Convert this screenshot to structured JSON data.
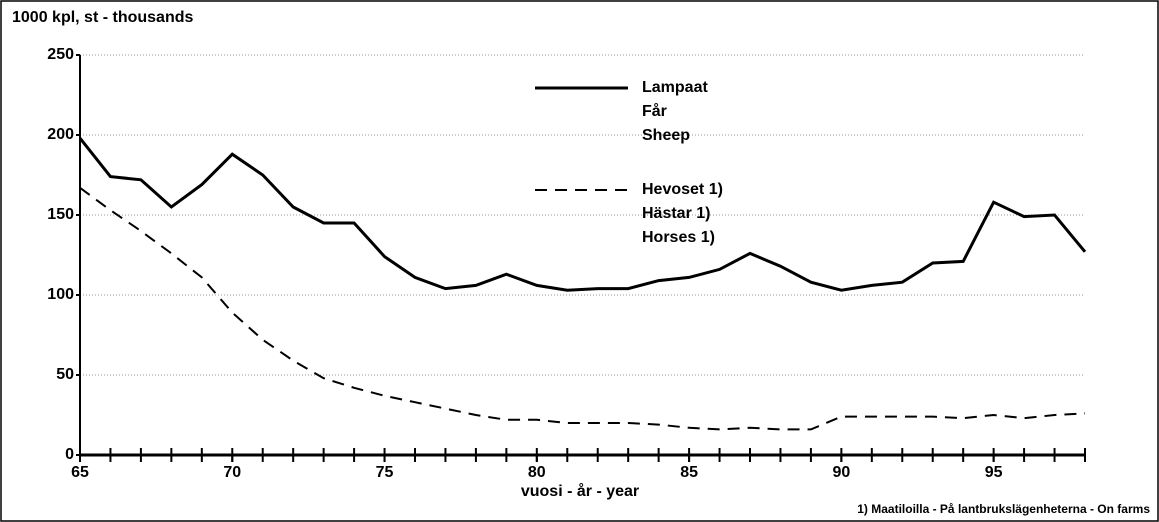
{
  "chart_data": {
    "type": "line",
    "y_label": "1000 kpl, st - thousands",
    "x_label": "vuosi - år - year",
    "note": "1) Maatiloilla - På lantbrukslägenheterna - On farms",
    "x": [
      65,
      66,
      67,
      68,
      69,
      70,
      71,
      72,
      73,
      74,
      75,
      76,
      77,
      78,
      79,
      80,
      81,
      82,
      83,
      84,
      85,
      86,
      87,
      88,
      89,
      90,
      91,
      92,
      93,
      94,
      95,
      96,
      97,
      98
    ],
    "series": [
      {
        "name": [
          "Lampaat",
          "Får",
          "Sheep"
        ],
        "color": "#000000",
        "style": "solid",
        "values": [
          198,
          174,
          172,
          155,
          169,
          188,
          175,
          155,
          145,
          145,
          124,
          111,
          104,
          106,
          113,
          106,
          103,
          104,
          104,
          109,
          111,
          116,
          126,
          118,
          108,
          103,
          106,
          108,
          120,
          121,
          158,
          149,
          150,
          127
        ]
      },
      {
        "name": [
          "Hevoset 1)",
          "Hästar 1)",
          "Horses 1)"
        ],
        "color": "#000000",
        "style": "dashed",
        "values": [
          167,
          153,
          140,
          126,
          111,
          89,
          72,
          59,
          48,
          42,
          37,
          33,
          29,
          25,
          22,
          22,
          20,
          20,
          20,
          19,
          17,
          16,
          17,
          16,
          16,
          24,
          24,
          24,
          24,
          23,
          25,
          23,
          25,
          26
        ]
      }
    ],
    "xlim": [
      65,
      98
    ],
    "xticks": [
      65,
      70,
      75,
      80,
      85,
      90,
      95
    ],
    "ylim": [
      0,
      250
    ],
    "yticks": [
      0,
      50,
      100,
      150,
      200,
      250
    ],
    "grid": true
  }
}
